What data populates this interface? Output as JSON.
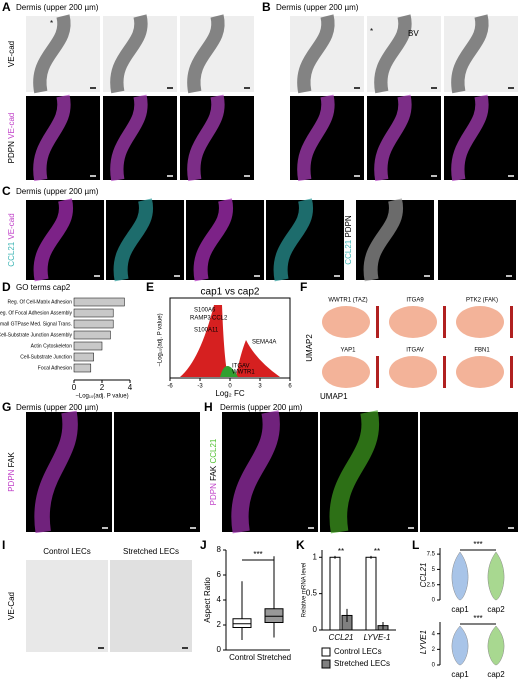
{
  "panels": {
    "A": {
      "label": "A",
      "title": "Dermis (upper 200 µm)",
      "row1": [
        "VE-cad"
      ],
      "row2": [
        "PDPN",
        "VE-cad"
      ],
      "marks": [
        "*"
      ]
    },
    "B": {
      "label": "B",
      "title": "Dermis (upper 200 µm)",
      "marks": [
        "*",
        "BV"
      ]
    },
    "C": {
      "label": "C",
      "title": "Dermis (upper 200 µm)",
      "side1": [
        "CCL21",
        "VE-cad"
      ],
      "side2": [
        "CCL21",
        "PDPN"
      ]
    },
    "D": {
      "label": "D",
      "title": "GO terms cap2",
      "xlabel": "−Log₁₀(adj. P value)",
      "categories": [
        "Reg. Of Cell-Matrix Adhesion",
        "Reg. Of Focal Adhesion Assembly",
        "Reg. Of Small GTPase Med. Signal Trans.",
        "Reg. Of Cell-Substrate Junction Assembly",
        "Actin Cytoskeleton",
        "Cell-Substrate Junction",
        "Focal Adhesion"
      ],
      "values": [
        3.6,
        2.8,
        2.8,
        2.6,
        2.0,
        1.4,
        1.2
      ],
      "xlim": [
        0,
        4
      ],
      "xticks": [
        0,
        2,
        4
      ],
      "color": "#c8c8c8"
    },
    "E": {
      "label": "E",
      "title": "cap1 vs cap2",
      "xlabel": "Log₂ FC",
      "ylabel": "−Log₁₀(adj. P value)",
      "xlim": [
        -6,
        6
      ],
      "xticks": [
        -6,
        -3,
        0,
        3,
        6
      ],
      "genes": [
        "S100A6",
        "RAMP3",
        "CCL2",
        "S100A11",
        "SEMA4A",
        "ITGAV",
        "WWTR1"
      ]
    },
    "F": {
      "label": "F",
      "titles": [
        "WWTR1 (TAZ)",
        "ITGA9",
        "PTK2 (FAK)",
        "YAP1",
        "ITGAV",
        "FBN1"
      ],
      "ylabel": "UMAP2",
      "xlabel": "UMAP1"
    },
    "G": {
      "label": "G",
      "title": "Dermis (upper 200 µm)",
      "side": [
        "PDPN",
        "FAK"
      ]
    },
    "H": {
      "label": "H",
      "title": "Dermis (upper 200 µm)",
      "side": [
        "PDPN",
        "FAK",
        "CCL21"
      ]
    },
    "I": {
      "label": "I",
      "columns": [
        "Control LECs",
        "Stretched LECs"
      ],
      "side": "VE-Cad"
    },
    "J": {
      "label": "J",
      "ylabel": "Aspect Ratio",
      "categories": [
        "Control",
        "Stretched"
      ],
      "ylim": [
        0,
        8
      ],
      "yticks": [
        0,
        2,
        4,
        6,
        8
      ],
      "significance": "***",
      "boxes": [
        {
          "min": 0.8,
          "q1": 1.8,
          "median": 2.1,
          "q3": 2.5,
          "max": 5.5
        },
        {
          "min": 1.0,
          "q1": 2.2,
          "median": 2.7,
          "q3": 3.3,
          "max": 7.5
        }
      ]
    },
    "K": {
      "label": "K",
      "ylabel": "Relative mRNA level",
      "categories": [
        "CCL21",
        "LYVE-1"
      ],
      "ylim": [
        0,
        1.1
      ],
      "yticks": [
        0,
        0.5,
        1
      ],
      "significance": [
        "**",
        "**"
      ],
      "series": [
        {
          "name": "Control LECs",
          "color": "#ffffff",
          "values": [
            1,
            1
          ],
          "errors": [
            0.02,
            0.02
          ]
        },
        {
          "name": "Stretched LECs",
          "color": "#808080",
          "values": [
            0.2,
            0.06
          ],
          "errors": [
            0.09,
            0.05
          ]
        }
      ]
    },
    "L": {
      "label": "L",
      "genes": [
        "CCL21",
        "LYVE1"
      ],
      "categories": [
        "cap1",
        "cap2"
      ],
      "significance": "***",
      "yticks1": [
        0,
        2.5,
        5,
        7.5
      ],
      "ylim1": [
        0,
        8.5
      ],
      "yticks2": [
        0,
        2,
        4
      ],
      "ylim2": [
        0,
        5.5
      ]
    }
  }
}
